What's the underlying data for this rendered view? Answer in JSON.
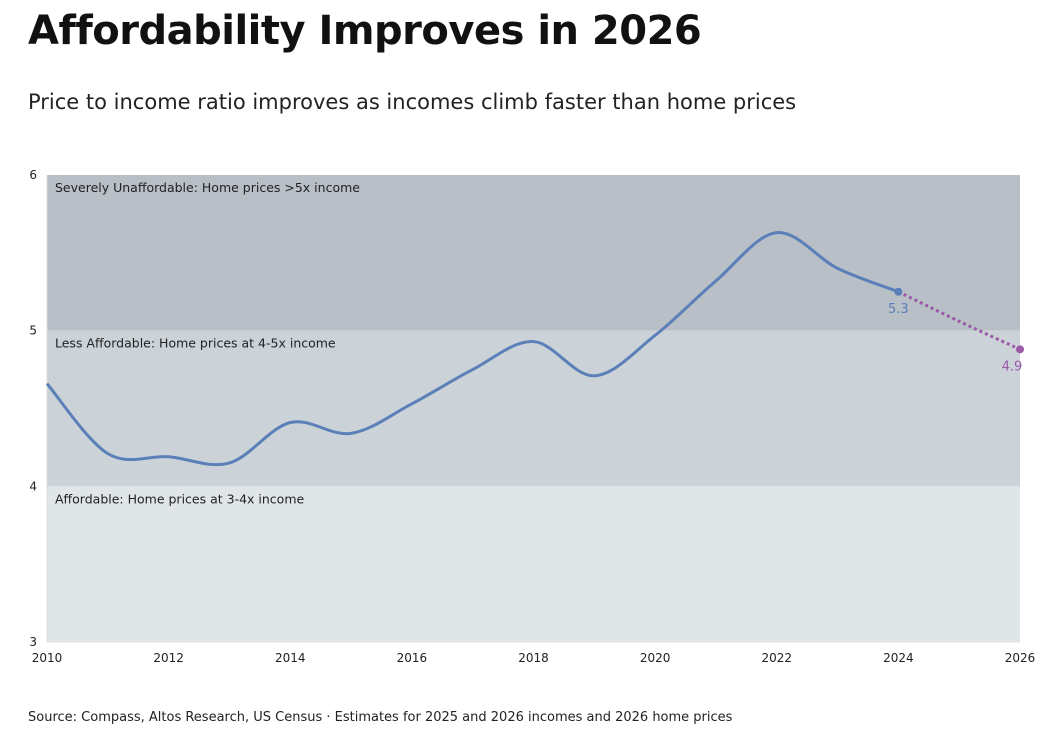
{
  "title": "Affordability Improves in 2026",
  "subtitle": "Price to income ratio improves as incomes climb faster than home prices",
  "source": "Source: Compass, Altos Research, US Census · Estimates for 2025 and 2026 incomes and 2026 home prices",
  "chart_data": {
    "type": "line",
    "xlim": [
      2010,
      2026
    ],
    "ylim": [
      3,
      6
    ],
    "x_ticks": [
      "2010",
      "2012",
      "2014",
      "2016",
      "2018",
      "2020",
      "2022",
      "2024",
      "2026"
    ],
    "y_ticks": [
      "3",
      "4",
      "5",
      "6"
    ],
    "grid": false,
    "bands": [
      {
        "from": 5,
        "to": 6,
        "label": "Severely Unaffordable: Home prices >5x income",
        "color": "#b8bfc6"
      },
      {
        "from": 4,
        "to": 5,
        "label": "Less Affordable: Home prices at 4-5x income",
        "color": "#ccd3d8"
      },
      {
        "from": 3,
        "to": 4,
        "label": "Affordable: Home prices at 3-4x income",
        "color": "#e0e5e8"
      }
    ],
    "series": [
      {
        "style": "solid",
        "color": "#5b7fb8",
        "x": [
          2010,
          2011,
          2012,
          2013,
          2014,
          2015,
          2016,
          2017,
          2018,
          2019,
          2020,
          2021,
          2022,
          2023,
          2024
        ],
        "y": [
          4.66,
          4.21,
          4.19,
          4.15,
          4.41,
          4.34,
          4.53,
          4.75,
          4.93,
          4.71,
          4.97,
          5.32,
          5.63,
          5.4,
          5.25
        ]
      },
      {
        "style": "dotted",
        "color": "#9a5aa8",
        "x": [
          2024,
          2025,
          2026
        ],
        "y": [
          5.25,
          5.06,
          4.88
        ]
      }
    ],
    "annotations": [
      {
        "x": 2024,
        "y": 5.25,
        "text": "5.3",
        "color": "#5b7fb8"
      },
      {
        "x": 2026,
        "y": 4.88,
        "text": "4.9",
        "color": "#9a5aa8"
      }
    ]
  }
}
